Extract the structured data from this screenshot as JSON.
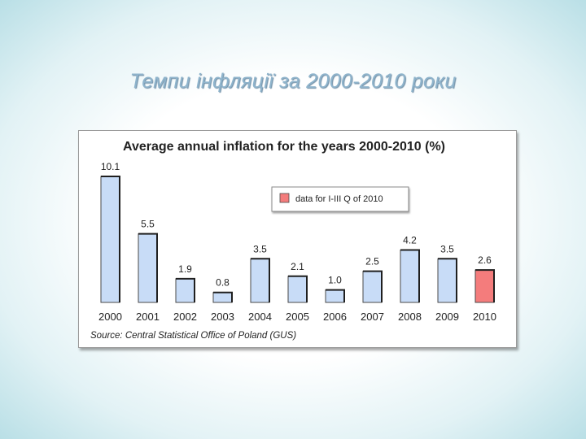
{
  "slide": {
    "title": "Темпи інфляції за 2000-2010 роки"
  },
  "chart_data": {
    "type": "bar",
    "title": "Average annual inflation for the years 2000-2010 (%)",
    "categories": [
      "2000",
      "2001",
      "2002",
      "2003",
      "2004",
      "2005",
      "2006",
      "2007",
      "2008",
      "2009",
      "2010"
    ],
    "values": [
      10.1,
      5.5,
      1.9,
      0.8,
      3.5,
      2.1,
      1.0,
      2.5,
      4.2,
      3.5,
      2.6
    ],
    "value_labels": [
      "10.1",
      "5.5",
      "1.9",
      "0.8",
      "3.5",
      "2.1",
      "1.0",
      "2.5",
      "4.2",
      "3.5",
      "2.6"
    ],
    "highlight": {
      "index": 10,
      "color": "#f47c7c",
      "label": "data for I-III Q of 2010"
    },
    "bar_color": "#c8dcf7",
    "bar_border": "#4a4a4a",
    "ylim": [
      0,
      10.1
    ],
    "legend": {
      "position": "top-right"
    },
    "grid": false,
    "source": "Source: Central Statistical Office of Poland (GUS)"
  }
}
